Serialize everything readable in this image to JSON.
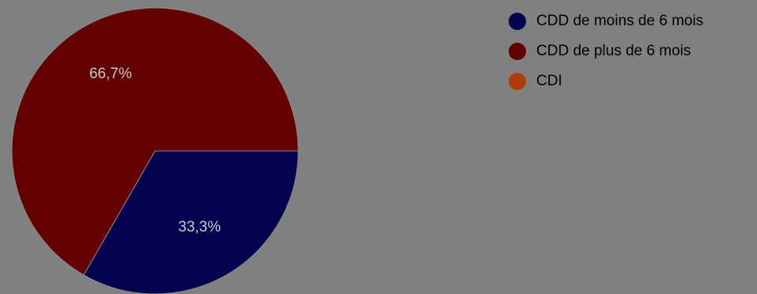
{
  "chart_data": {
    "type": "pie",
    "slices": [
      {
        "label": "CDD de moins de 6 mois",
        "value": 33.3,
        "display": "33,3%",
        "color": "#02024f"
      },
      {
        "label": "CDD de plus de 6 mois",
        "value": 66.7,
        "display": "66,7%",
        "color": "#630000"
      },
      {
        "label": "CDI",
        "value": 0,
        "display": "",
        "color": "#b13a09"
      }
    ],
    "legend_position": "top-right"
  }
}
